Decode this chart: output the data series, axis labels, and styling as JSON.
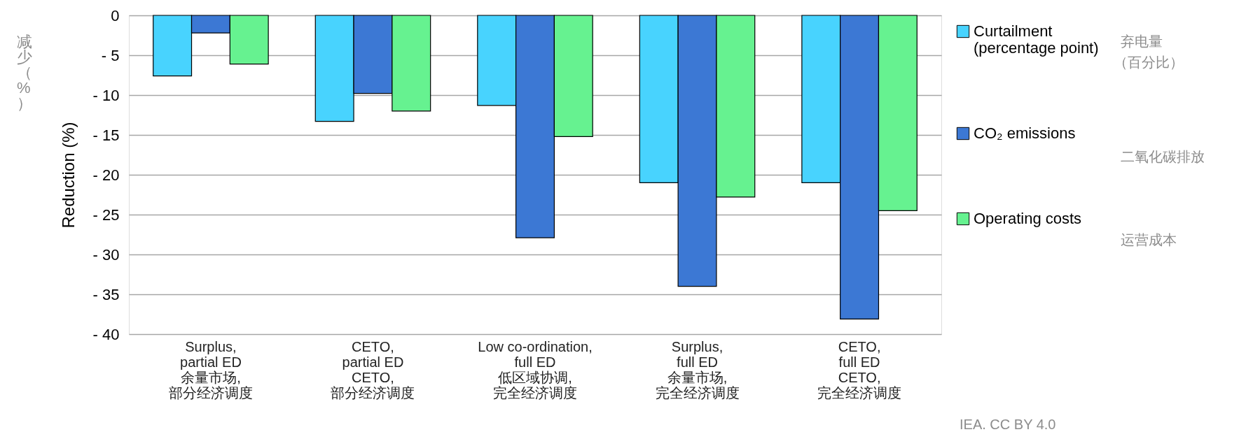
{
  "chart_data": {
    "type": "bar",
    "ylabel": "Reduction (%)",
    "categories": [
      "Surplus,\npartial ED\n余量市场,\n部分经济调度",
      "CETO,\npartial ED\nCETO,\n部分经济调度",
      "Low co-ordination,\nfull ED\n低区域协调,\n完全经济调度",
      "Surplus,\nfull ED\n余量市场,\n完全经济调度",
      "CETO,\nfull ED\nCETO,\n完全经济调度"
    ],
    "series": [
      {
        "name": "Curtailment (percentage point)",
        "color": "#48d3fe",
        "values": [
          -7.6,
          -13.3,
          -11.3,
          -21.0,
          -21.0
        ]
      },
      {
        "name": "CO₂ emissions",
        "color": "#3c78d4",
        "values": [
          -2.2,
          -9.8,
          -27.9,
          -34.0,
          -38.1
        ]
      },
      {
        "name": "Operating costs",
        "color": "#66f290",
        "values": [
          -6.1,
          -12.0,
          -15.2,
          -22.8,
          -24.5
        ]
      }
    ],
    "ylim": [
      -40,
      0
    ],
    "yticks": [
      {
        "value": -40,
        "label": "- 40"
      },
      {
        "value": -35,
        "label": "- 35"
      },
      {
        "value": -30,
        "label": "- 30"
      },
      {
        "value": -25,
        "label": "- 25"
      },
      {
        "value": -20,
        "label": "- 20"
      },
      {
        "value": -15,
        "label": "- 15"
      },
      {
        "value": -10,
        "label": "- 10"
      },
      {
        "value": -5,
        "label": "- 5"
      },
      0
    ],
    "grid": "y",
    "legend": "right",
    "annotations": [
      "减少（%）",
      "弃电量",
      "（百分比）",
      "二氧化碳排放",
      "运营成本",
      "IEA. CC BY 4.0"
    ]
  }
}
